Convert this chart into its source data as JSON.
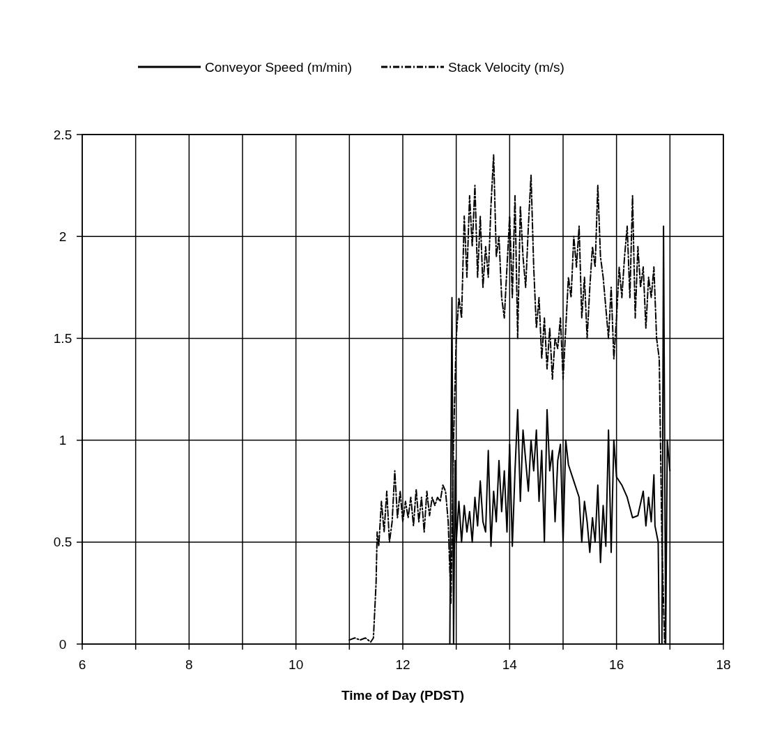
{
  "chart_data": {
    "type": "line",
    "xlabel": "Time of Day (PDST)",
    "xlim": [
      6,
      18
    ],
    "ylim": [
      0,
      2.5
    ],
    "xticks": [
      6,
      {
        "value": 7,
        "label": null
      },
      8,
      {
        "value": 9,
        "label": null
      },
      10,
      {
        "value": 11,
        "label": null
      },
      12,
      {
        "value": 13,
        "label": null
      },
      14,
      {
        "value": 15,
        "label": null
      },
      16,
      {
        "value": 17,
        "label": null
      },
      18
    ],
    "yticks": [
      0,
      0.5,
      1,
      1.5,
      2,
      2.5
    ],
    "grid": true,
    "legend": "top",
    "marker": "none",
    "series": [
      {
        "name": "Conveyor Speed (m/min)",
        "color": "#000000",
        "line_style": "solid",
        "x": [
          12.88,
          12.92,
          12.95,
          12.98,
          13.0,
          13.05,
          13.1,
          13.15,
          13.2,
          13.25,
          13.3,
          13.35,
          13.4,
          13.45,
          13.5,
          13.55,
          13.6,
          13.65,
          13.7,
          13.75,
          13.8,
          13.85,
          13.9,
          13.95,
          14.0,
          14.05,
          14.1,
          14.15,
          14.2,
          14.25,
          14.3,
          14.35,
          14.4,
          14.45,
          14.5,
          14.55,
          14.6,
          14.65,
          14.7,
          14.75,
          14.8,
          14.85,
          14.9,
          14.95,
          15.0,
          15.05,
          15.1,
          15.2,
          15.3,
          15.35,
          15.4,
          15.45,
          15.5,
          15.55,
          15.6,
          15.65,
          15.7,
          15.75,
          15.8,
          15.85,
          15.9,
          15.95,
          16.0,
          16.1,
          16.2,
          16.3,
          16.4,
          16.5,
          16.55,
          16.6,
          16.65,
          16.7,
          16.72,
          16.78,
          16.8,
          16.85,
          16.88,
          16.92,
          16.95,
          17.0
        ],
        "values": [
          0,
          1.7,
          0,
          0.9,
          0.5,
          0.7,
          0.5,
          0.68,
          0.55,
          0.65,
          0.5,
          0.72,
          0.58,
          0.8,
          0.6,
          0.55,
          0.95,
          0.48,
          0.75,
          0.6,
          0.9,
          0.65,
          0.85,
          0.55,
          0.98,
          0.48,
          0.85,
          1.15,
          0.7,
          1.05,
          0.9,
          0.75,
          1.0,
          0.85,
          1.05,
          0.7,
          0.95,
          0.5,
          1.15,
          0.85,
          0.95,
          0.6,
          0.9,
          0.98,
          0.5,
          1.0,
          0.88,
          0.8,
          0.72,
          0.5,
          0.7,
          0.6,
          0.45,
          0.62,
          0.5,
          0.78,
          0.4,
          0.68,
          0.48,
          1.05,
          0.45,
          1.0,
          0.82,
          0.78,
          0.72,
          0.62,
          0.63,
          0.75,
          0.58,
          0.72,
          0.6,
          0.83,
          0.58,
          0.5,
          0,
          0,
          2.05,
          0,
          1.0,
          0.85
        ]
      },
      {
        "name": "Stack Velocity (m/s)",
        "color": "#000000",
        "line_style": "dashed",
        "x": [
          11.0,
          11.1,
          11.2,
          11.3,
          11.4,
          11.45,
          11.5,
          11.52,
          11.55,
          11.6,
          11.65,
          11.7,
          11.75,
          11.8,
          11.85,
          11.9,
          11.95,
          12.0,
          12.05,
          12.1,
          12.15,
          12.2,
          12.25,
          12.3,
          12.35,
          12.4,
          12.45,
          12.5,
          12.55,
          12.6,
          12.65,
          12.7,
          12.75,
          12.8,
          12.85,
          12.9,
          12.95,
          13.0,
          13.05,
          13.1,
          13.15,
          13.2,
          13.25,
          13.3,
          13.35,
          13.4,
          13.45,
          13.5,
          13.55,
          13.6,
          13.65,
          13.7,
          13.75,
          13.8,
          13.85,
          13.9,
          13.95,
          14.0,
          14.05,
          14.1,
          14.15,
          14.2,
          14.25,
          14.3,
          14.35,
          14.4,
          14.45,
          14.5,
          14.55,
          14.6,
          14.65,
          14.7,
          14.75,
          14.8,
          14.85,
          14.9,
          14.95,
          15.0,
          15.05,
          15.1,
          15.15,
          15.2,
          15.25,
          15.3,
          15.35,
          15.4,
          15.45,
          15.5,
          15.55,
          15.6,
          15.65,
          15.7,
          15.75,
          15.8,
          15.85,
          15.9,
          15.95,
          16.0,
          16.05,
          16.1,
          16.15,
          16.2,
          16.25,
          16.3,
          16.35,
          16.4,
          16.45,
          16.5,
          16.55,
          16.6,
          16.65,
          16.7,
          16.75,
          16.8,
          16.85,
          16.9
        ],
        "values": [
          0.02,
          0.03,
          0.02,
          0.03,
          0.01,
          0.03,
          0.3,
          0.55,
          0.48,
          0.7,
          0.55,
          0.75,
          0.5,
          0.6,
          0.85,
          0.62,
          0.75,
          0.6,
          0.7,
          0.62,
          0.72,
          0.58,
          0.76,
          0.6,
          0.72,
          0.55,
          0.75,
          0.63,
          0.72,
          0.68,
          0.72,
          0.7,
          0.78,
          0.75,
          0.6,
          0.2,
          1.0,
          1.5,
          1.7,
          1.6,
          2.1,
          1.8,
          2.2,
          1.95,
          2.25,
          1.8,
          2.1,
          1.75,
          1.95,
          1.8,
          2.15,
          2.4,
          1.9,
          2.0,
          1.7,
          1.6,
          1.85,
          2.1,
          1.7,
          2.2,
          1.5,
          2.15,
          1.9,
          1.75,
          2.05,
          2.3,
          1.85,
          1.55,
          1.7,
          1.4,
          1.6,
          1.35,
          1.55,
          1.3,
          1.5,
          1.45,
          1.6,
          1.3,
          1.55,
          1.8,
          1.7,
          2.0,
          1.85,
          2.05,
          1.6,
          1.8,
          1.5,
          1.75,
          1.95,
          1.85,
          2.25,
          1.9,
          1.8,
          1.65,
          1.5,
          1.75,
          1.4,
          1.6,
          1.85,
          1.7,
          1.9,
          2.05,
          1.7,
          2.2,
          1.6,
          1.95,
          1.75,
          1.85,
          1.55,
          1.8,
          1.7,
          1.85,
          1.5,
          1.4,
          0.5,
          0
        ]
      }
    ]
  }
}
